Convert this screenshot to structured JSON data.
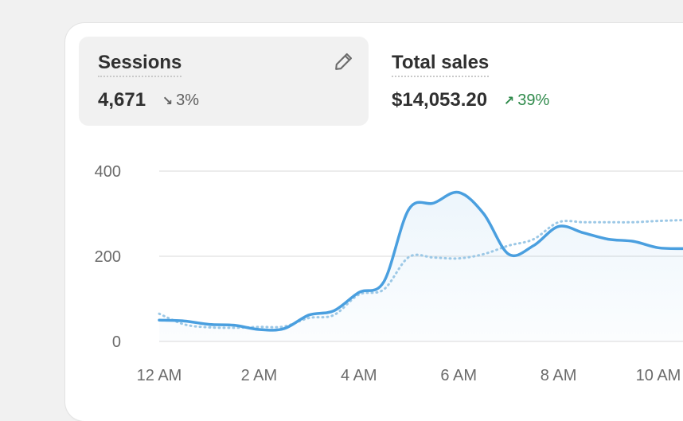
{
  "metrics": [
    {
      "title": "Sessions",
      "value": "4,671",
      "delta": "3%",
      "direction": "down"
    },
    {
      "title": "Total sales",
      "value": "$14,053.20",
      "delta": "39%",
      "direction": "up"
    }
  ],
  "edit_icon": "pencil-icon",
  "colors": {
    "primary_line": "#4a9fdf",
    "comparison_line": "#9cc8e6",
    "delta_up": "#2f8a4b",
    "delta_down": "#616161"
  },
  "chart_data": {
    "type": "line",
    "y_ticks": [
      "400",
      "200",
      "0"
    ],
    "x_ticks": [
      "12 AM",
      "2 AM",
      "4 AM",
      "6 AM",
      "8 AM",
      "10 AM"
    ],
    "ylim": [
      0,
      400
    ],
    "grid": true,
    "x": [
      0,
      0.5,
      1,
      1.5,
      2,
      2.5,
      3,
      3.5,
      4,
      4.5,
      5,
      5.5,
      6,
      6.5,
      7,
      7.5,
      8,
      8.5,
      9,
      9.5,
      10,
      10.5
    ],
    "series": [
      {
        "values": [
          50,
          48,
          40,
          38,
          28,
          30,
          62,
          72,
          115,
          140,
          310,
          325,
          350,
          300,
          205,
          225,
          270,
          255,
          240,
          235,
          220,
          218
        ]
      },
      {
        "values": [
          65,
          40,
          33,
          32,
          34,
          35,
          55,
          62,
          110,
          122,
          198,
          197,
          195,
          205,
          225,
          240,
          280,
          280,
          280,
          280,
          283,
          285
        ]
      }
    ]
  }
}
